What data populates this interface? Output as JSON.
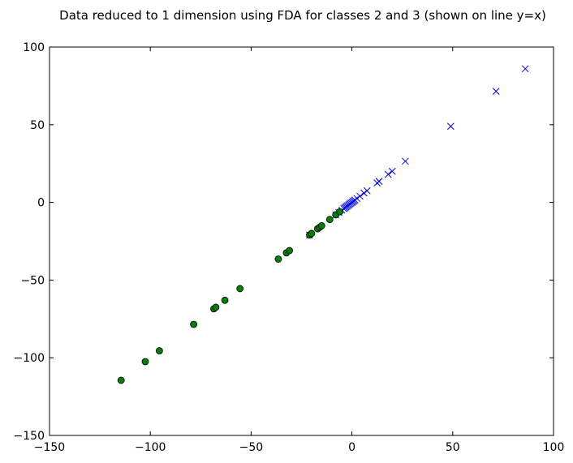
{
  "chart_data": {
    "type": "scatter",
    "title": "Data reduced to 1 dimension using FDA for classes 2 and 3 (shown on line y=x)",
    "xlabel": "",
    "ylabel": "",
    "xlim": [
      -150,
      100
    ],
    "ylim": [
      -150,
      100
    ],
    "x_ticks": [
      -150,
      -100,
      -50,
      0,
      50,
      100
    ],
    "y_ticks": [
      -150,
      -100,
      -50,
      0,
      50,
      100
    ],
    "x_tick_labels": [
      "−150",
      "−100",
      "−50",
      "0",
      "50",
      "100"
    ],
    "y_tick_labels": [
      "−150",
      "−100",
      "−50",
      "0",
      "50",
      "100"
    ],
    "grid": false,
    "series": [
      {
        "marker": "circle",
        "color": "#008000",
        "x": [
          -114.5,
          -102.5,
          -95.5,
          -78.5,
          -68.5,
          -67.5,
          -63,
          -55.5,
          -36.5,
          -32.5,
          -31,
          -21,
          -20,
          -17,
          -16,
          -15,
          -11,
          -8,
          -6
        ],
        "y": [
          -114.5,
          -102.5,
          -95.5,
          -78.5,
          -68.5,
          -67.5,
          -63,
          -55.5,
          -36.5,
          -32.5,
          -31,
          -21,
          -20,
          -17,
          -16,
          -15,
          -11,
          -8,
          -6
        ]
      },
      {
        "marker": "x",
        "color": "#0000ff",
        "x": [
          86,
          71.5,
          49,
          26.5,
          20,
          18,
          13.5,
          12.5,
          7.5,
          6,
          4,
          2.5,
          1.5,
          1,
          0.5,
          0,
          -0.5,
          -1,
          -1.5,
          -2,
          -2.5,
          -3,
          -3.5,
          -4,
          -5,
          -6.5,
          -8,
          -21
        ],
        "y": [
          86,
          71.5,
          49,
          26.5,
          20,
          18,
          13.5,
          12.5,
          7.5,
          6,
          4,
          2.5,
          1.5,
          1,
          0.5,
          0,
          -0.5,
          -1,
          -1.5,
          -2,
          -2.5,
          -3,
          -3.5,
          -4,
          -5,
          -6.5,
          -8,
          -21
        ]
      }
    ]
  }
}
